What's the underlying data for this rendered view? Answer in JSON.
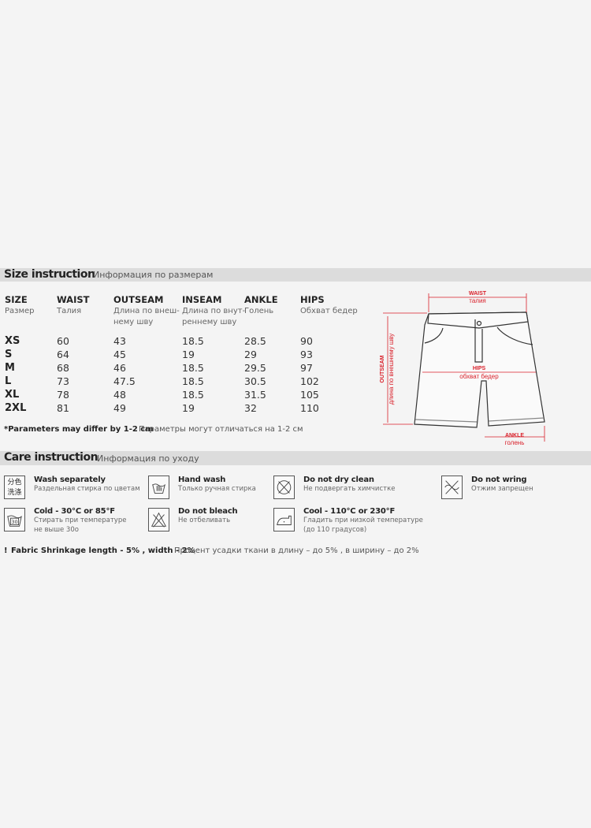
{
  "size_section": {
    "title": "Size instruction",
    "subtitle": "Информация по размерам",
    "columns": [
      {
        "label": "SIZE",
        "sub": "Размер",
        "sub2": ""
      },
      {
        "label": "WAIST",
        "sub": "Талия",
        "sub2": ""
      },
      {
        "label": "OUTSEAM",
        "sub": "Длина по внеш-",
        "sub2": "нему шву"
      },
      {
        "label": "INSEAM",
        "sub": "Длина по внут-",
        "sub2": "реннему шву"
      },
      {
        "label": "ANKLE",
        "sub": "Голень",
        "sub2": ""
      },
      {
        "label": "HIPS",
        "sub": "Обхват бедер",
        "sub2": ""
      }
    ],
    "rows": [
      [
        "XS",
        "60",
        "43",
        "18.5",
        "28.5",
        "90"
      ],
      [
        "S",
        "64",
        "45",
        "19",
        "29",
        "93"
      ],
      [
        "M",
        "68",
        "46",
        "18.5",
        "29.5",
        "97"
      ],
      [
        "L",
        "73",
        "47.5",
        "18.5",
        "30.5",
        "102"
      ],
      [
        "XL",
        "78",
        "48",
        "18.5",
        "31.5",
        "105"
      ],
      [
        "2XL",
        "81",
        "49",
        "19",
        "32",
        "110"
      ]
    ],
    "note": "*Parameters may differ by 1-2 cm",
    "note_ru": "Параметры могут отличаться на 1-2 см"
  },
  "diagram": {
    "accent": "#d9202a",
    "waist": "WAIST",
    "waist_ru": "талия",
    "hips": "HIPS",
    "hips_ru": "обхват бедер",
    "outseam": "OUTSEAM",
    "outseam_ru": "длина по внешнему шву",
    "ankle": "ANKLE",
    "ankle_ru": "голень"
  },
  "care_section": {
    "title": "Care instruction",
    "subtitle": "Информация по уходу",
    "items": [
      {
        "icon": "wash-separately-icon",
        "glyph1": "分色",
        "glyph2": "洗涤",
        "title": "Wash separately",
        "sub": "Раздельная стирка по цветам",
        "sub2": ""
      },
      {
        "icon": "hand-wash-icon",
        "title": "Hand wash",
        "sub": "Только ручная стирка",
        "sub2": ""
      },
      {
        "icon": "do-not-dry-clean-icon",
        "title": "Do not dry clean",
        "sub": "Не подвергать химчистке",
        "sub2": ""
      },
      {
        "icon": "do-not-wring-icon",
        "title": "Do not wring",
        "sub": "Отжим запрещен",
        "sub2": ""
      },
      {
        "icon": "wash-30-icon",
        "glyph1": "30",
        "title": "Cold - 30°C or 85°F",
        "sub": "Стирать при температуре",
        "sub2": "не выше 30o"
      },
      {
        "icon": "do-not-bleach-icon",
        "title": "Do not bleach",
        "sub": "Не отбеливать",
        "sub2": ""
      },
      {
        "icon": "iron-low-icon",
        "title": "Cool - 110°C or 230°F",
        "sub": "Гладить при низкой температуре",
        "sub2": "(до 110 градусов)"
      }
    ],
    "shrink_mark": "!",
    "shrink": "Fabric Shrinkage length - 5% , width - 2%",
    "shrink_ru": "Процент усадки ткани в длину – до 5% , в ширину – до 2%"
  }
}
